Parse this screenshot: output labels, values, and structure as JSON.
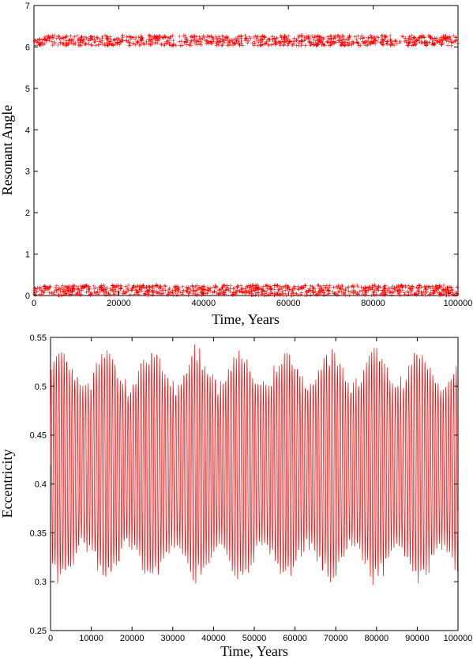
{
  "chart_data": [
    {
      "type": "scatter",
      "marker": "plus",
      "xlabel": "Time, Years",
      "ylabel": "Resonant Angle",
      "xlim": [
        0,
        100000
      ],
      "ylim": [
        0,
        7
      ],
      "xticks": [
        0,
        20000,
        40000,
        60000,
        80000,
        100000
      ],
      "xtick_labels": [
        "0",
        "20000",
        "40000",
        "60000",
        "80000",
        "100000"
      ],
      "yticks": [
        0,
        1,
        2,
        3,
        4,
        5,
        6,
        7
      ],
      "ytick_labels": [
        "0",
        "1",
        "2",
        "3",
        "4",
        "5",
        "6",
        "7"
      ],
      "grid": false,
      "color": "#ff0000",
      "series": [
        {
          "x_range": [
            0,
            100000
          ],
          "y_band": [
            6.03,
            6.28
          ],
          "n_points": 900
        },
        {
          "x_range": [
            0,
            100000
          ],
          "y_band": [
            0.0,
            0.25
          ],
          "n_points": 900
        }
      ]
    },
    {
      "type": "line",
      "xlabel": "Time, Years",
      "ylabel": "Eccentricity",
      "xlim": [
        0,
        100000
      ],
      "ylim": [
        0.25,
        0.55
      ],
      "xticks": [
        0,
        10000,
        20000,
        30000,
        40000,
        50000,
        60000,
        70000,
        80000,
        90000,
        100000
      ],
      "xtick_labels": [
        "0",
        "10000",
        "20000",
        "30000",
        "40000",
        "50000",
        "60000",
        "70000",
        "80000",
        "90000",
        "100000"
      ],
      "yticks": [
        0.25,
        0.3,
        0.35,
        0.4,
        0.45,
        0.5,
        0.55
      ],
      "ytick_labels": [
        "0.25",
        "0.3",
        "0.35",
        "0.4",
        "0.45",
        "0.5",
        "0.55"
      ],
      "grid": false,
      "color": "#ff0000",
      "series": [
        {
          "x_range": [
            0,
            100000
          ],
          "y_min": 0.29,
          "y_max": 0.548,
          "mean": 0.42,
          "oscillation_period_years": 650,
          "n_points": 1600
        }
      ]
    }
  ]
}
